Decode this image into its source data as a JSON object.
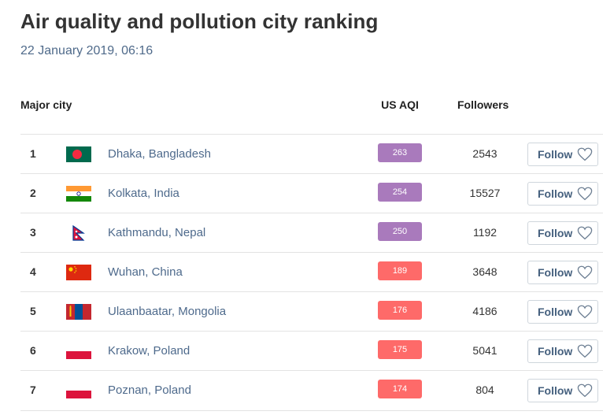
{
  "title": "Air quality and pollution city ranking",
  "date": "22 January 2019, 06:16",
  "headers": {
    "city": "Major city",
    "aqi": "US AQI",
    "followers": "Followers"
  },
  "colors": {
    "very_unhealthy": "#a97abc",
    "unhealthy": "#fe6a69"
  },
  "rows": [
    {
      "rank": "1",
      "city": "Dhaka, Bangladesh",
      "flag": "bangladesh-flag",
      "aqi": "263",
      "level": "very_unhealthy",
      "followers": "2543",
      "follow": "Follow"
    },
    {
      "rank": "2",
      "city": "Kolkata, India",
      "flag": "india-flag",
      "aqi": "254",
      "level": "very_unhealthy",
      "followers": "15527",
      "follow": "Follow"
    },
    {
      "rank": "3",
      "city": "Kathmandu, Nepal",
      "flag": "nepal-flag",
      "aqi": "250",
      "level": "very_unhealthy",
      "followers": "1192",
      "follow": "Follow"
    },
    {
      "rank": "4",
      "city": "Wuhan, China",
      "flag": "china-flag",
      "aqi": "189",
      "level": "unhealthy",
      "followers": "3648",
      "follow": "Follow"
    },
    {
      "rank": "5",
      "city": "Ulaanbaatar, Mongolia",
      "flag": "mongolia-flag",
      "aqi": "176",
      "level": "unhealthy",
      "followers": "4186",
      "follow": "Follow"
    },
    {
      "rank": "6",
      "city": "Krakow, Poland",
      "flag": "poland-flag",
      "aqi": "175",
      "level": "unhealthy",
      "followers": "5041",
      "follow": "Follow"
    },
    {
      "rank": "7",
      "city": "Poznan, Poland",
      "flag": "poland-flag",
      "aqi": "174",
      "level": "unhealthy",
      "followers": "804",
      "follow": "Follow"
    }
  ]
}
